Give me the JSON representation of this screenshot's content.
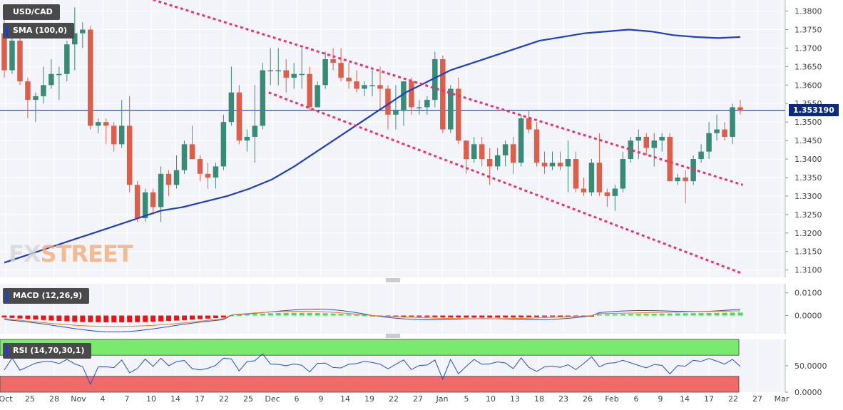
{
  "symbol": "USD/CAD",
  "watermark": {
    "fx": "FX",
    "street": "STREET"
  },
  "indicators": {
    "sma": {
      "label": "SMA (100,0)",
      "color": "#1f3fbf"
    },
    "macd": {
      "label": "MACD (12,26,9)"
    },
    "rsi": {
      "label": "RSI (14,70,30,1)"
    }
  },
  "current_price": "1.353190",
  "price_axis_ticks": [
    "1.3800",
    "1.3750",
    "1.3700",
    "1.3650",
    "1.3600",
    "1.3550",
    "1.3500",
    "1.3450",
    "1.3400",
    "1.3350",
    "1.3300",
    "1.3250",
    "1.3200",
    "1.3150",
    "1.3100"
  ],
  "macd_axis_ticks": [
    "0.0100",
    "0.0000"
  ],
  "rsi_axis_ticks": [
    "50.0000",
    "0.0000"
  ],
  "date_axis_ticks": [
    "Oct",
    "25",
    "28",
    "Nov",
    "4",
    "7",
    "10",
    "14",
    "17",
    "22",
    "25",
    "Dec",
    "6",
    "9",
    "14",
    "19",
    "22",
    "27",
    "Jan",
    "5",
    "10",
    "13",
    "18",
    "23",
    "26",
    "Feb",
    "6",
    "9",
    "14",
    "17",
    "22",
    "27",
    "Mar"
  ],
  "colors": {
    "up": "#3a8a78",
    "down": "#d9604c",
    "sma": "#1f3fbf",
    "trend": "#e8336b",
    "price_line": "#0b2a7a",
    "macd_pos": "#3fe05a",
    "macd_neg": "#ee1111",
    "macd_line": "#2050c8",
    "signal_line": "#ee7a20",
    "rsi_line": "#2050c8",
    "overbought": "#7aea6e",
    "oversold": "#f06a6a"
  },
  "chart_data": {
    "type": "candlestick",
    "title": "USD/CAD",
    "ylim": [
      1.308,
      1.383
    ],
    "x_labels": [
      "Oct",
      "25",
      "28",
      "Nov",
      "4",
      "7",
      "10",
      "14",
      "17",
      "22",
      "25",
      "Dec",
      "6",
      "9",
      "14",
      "19",
      "22",
      "27",
      "Jan",
      "5",
      "10",
      "13",
      "18",
      "23",
      "26",
      "Feb",
      "6",
      "9",
      "14",
      "17",
      "22",
      "27",
      "Mar"
    ],
    "candles": [
      [
        1.374,
        1.381,
        1.362,
        1.364
      ],
      [
        1.364,
        1.374,
        1.363,
        1.372
      ],
      [
        1.372,
        1.373,
        1.36,
        1.361
      ],
      [
        1.361,
        1.362,
        1.351,
        1.356
      ],
      [
        1.356,
        1.358,
        1.35,
        1.357
      ],
      [
        1.357,
        1.365,
        1.355,
        1.36
      ],
      [
        1.36,
        1.367,
        1.359,
        1.363
      ],
      [
        1.363,
        1.365,
        1.356,
        1.363
      ],
      [
        1.363,
        1.372,
        1.361,
        1.371
      ],
      [
        1.371,
        1.381,
        1.364,
        1.374
      ],
      [
        1.374,
        1.377,
        1.37,
        1.375
      ],
      [
        1.375,
        1.376,
        1.348,
        1.349
      ],
      [
        1.349,
        1.351,
        1.347,
        1.35
      ],
      [
        1.35,
        1.351,
        1.344,
        1.349
      ],
      [
        1.349,
        1.35,
        1.342,
        1.344
      ],
      [
        1.344,
        1.356,
        1.343,
        1.349
      ],
      [
        1.349,
        1.357,
        1.331,
        1.333
      ],
      [
        1.333,
        1.334,
        1.323,
        1.324
      ],
      [
        1.324,
        1.332,
        1.323,
        1.331
      ],
      [
        1.331,
        1.332,
        1.325,
        1.327
      ],
      [
        1.327,
        1.338,
        1.323,
        1.336
      ],
      [
        1.336,
        1.337,
        1.33,
        1.333
      ],
      [
        1.333,
        1.341,
        1.332,
        1.337
      ],
      [
        1.337,
        1.345,
        1.336,
        1.344
      ],
      [
        1.344,
        1.349,
        1.34,
        1.34
      ],
      [
        1.34,
        1.341,
        1.334,
        1.336
      ],
      [
        1.336,
        1.339,
        1.332,
        1.335
      ],
      [
        1.335,
        1.339,
        1.332,
        1.338
      ],
      [
        1.338,
        1.352,
        1.337,
        1.35
      ],
      [
        1.35,
        1.365,
        1.349,
        1.358
      ],
      [
        1.358,
        1.36,
        1.344,
        1.345
      ],
      [
        1.345,
        1.348,
        1.342,
        1.346
      ],
      [
        1.346,
        1.36,
        1.339,
        1.349
      ],
      [
        1.349,
        1.366,
        1.348,
        1.364
      ],
      [
        1.364,
        1.37,
        1.36,
        1.364
      ],
      [
        1.364,
        1.37,
        1.36,
        1.364
      ],
      [
        1.364,
        1.367,
        1.358,
        1.362
      ],
      [
        1.362,
        1.366,
        1.359,
        1.363
      ],
      [
        1.363,
        1.37,
        1.359,
        1.363
      ],
      [
        1.363,
        1.365,
        1.353,
        1.354
      ],
      [
        1.354,
        1.361,
        1.354,
        1.36
      ],
      [
        1.36,
        1.369,
        1.359,
        1.367
      ],
      [
        1.367,
        1.37,
        1.364,
        1.366
      ],
      [
        1.366,
        1.37,
        1.361,
        1.362
      ],
      [
        1.362,
        1.366,
        1.359,
        1.361
      ],
      [
        1.361,
        1.364,
        1.358,
        1.359
      ],
      [
        1.359,
        1.361,
        1.357,
        1.36
      ],
      [
        1.36,
        1.364,
        1.357,
        1.36
      ],
      [
        1.36,
        1.365,
        1.353,
        1.359
      ],
      [
        1.359,
        1.36,
        1.348,
        1.352
      ],
      [
        1.352,
        1.36,
        1.348,
        1.353
      ],
      [
        1.353,
        1.361,
        1.349,
        1.361
      ],
      [
        1.361,
        1.362,
        1.352,
        1.354
      ],
      [
        1.354,
        1.356,
        1.352,
        1.354
      ],
      [
        1.354,
        1.357,
        1.352,
        1.356
      ],
      [
        1.356,
        1.369,
        1.354,
        1.367
      ],
      [
        1.367,
        1.368,
        1.347,
        1.348
      ],
      [
        1.348,
        1.36,
        1.347,
        1.359
      ],
      [
        1.359,
        1.362,
        1.344,
        1.345
      ],
      [
        1.345,
        1.345,
        1.336,
        1.34
      ],
      [
        1.34,
        1.346,
        1.339,
        1.344
      ],
      [
        1.344,
        1.346,
        1.338,
        1.34
      ],
      [
        1.34,
        1.343,
        1.333,
        1.338
      ],
      [
        1.338,
        1.343,
        1.337,
        1.341
      ],
      [
        1.341,
        1.345,
        1.338,
        1.344
      ],
      [
        1.344,
        1.346,
        1.336,
        1.339
      ],
      [
        1.339,
        1.352,
        1.338,
        1.351
      ],
      [
        1.351,
        1.353,
        1.347,
        1.348
      ],
      [
        1.348,
        1.35,
        1.338,
        1.339
      ],
      [
        1.339,
        1.342,
        1.336,
        1.338
      ],
      [
        1.338,
        1.342,
        1.337,
        1.339
      ],
      [
        1.339,
        1.342,
        1.337,
        1.338
      ],
      [
        1.338,
        1.345,
        1.331,
        1.34
      ],
      [
        1.34,
        1.342,
        1.331,
        1.332
      ],
      [
        1.332,
        1.335,
        1.33,
        1.331
      ],
      [
        1.331,
        1.34,
        1.33,
        1.339
      ],
      [
        1.339,
        1.347,
        1.33,
        1.331
      ],
      [
        1.331,
        1.332,
        1.327,
        1.33
      ],
      [
        1.33,
        1.333,
        1.326,
        1.332
      ],
      [
        1.332,
        1.342,
        1.331,
        1.34
      ],
      [
        1.34,
        1.346,
        1.339,
        1.345
      ],
      [
        1.345,
        1.348,
        1.34,
        1.346
      ],
      [
        1.346,
        1.347,
        1.341,
        1.343
      ],
      [
        1.343,
        1.347,
        1.338,
        1.345
      ],
      [
        1.345,
        1.347,
        1.342,
        1.346
      ],
      [
        1.346,
        1.347,
        1.334,
        1.334
      ],
      [
        1.334,
        1.336,
        1.333,
        1.335
      ],
      [
        1.335,
        1.337,
        1.328,
        1.334
      ],
      [
        1.334,
        1.341,
        1.333,
        1.34
      ],
      [
        1.34,
        1.344,
        1.339,
        1.342
      ],
      [
        1.342,
        1.35,
        1.34,
        1.347
      ],
      [
        1.347,
        1.352,
        1.345,
        1.348
      ],
      [
        1.348,
        1.35,
        1.345,
        1.346
      ],
      [
        1.346,
        1.355,
        1.344,
        1.354
      ],
      [
        1.354,
        1.356,
        1.352,
        1.353
      ]
    ],
    "sma_100": [
      1.312,
      1.314,
      1.316,
      1.318,
      1.32,
      1.322,
      1.324,
      1.326,
      1.327,
      1.3285,
      1.33,
      1.332,
      1.3345,
      1.338,
      1.342,
      1.346,
      1.35,
      1.354,
      1.358,
      1.361,
      1.364,
      1.366,
      1.368,
      1.37,
      1.372,
      1.373,
      1.374,
      1.3745,
      1.375,
      1.3745,
      1.3735,
      1.373,
      1.3727,
      1.373
    ],
    "trendlines": [
      {
        "from": [
          0.18,
          1.384
        ],
        "to": [
          0.94,
          1.333
        ]
      },
      {
        "from": [
          0.34,
          1.358
        ],
        "to": [
          0.94,
          1.309
        ]
      }
    ],
    "macd": {
      "ylim": [
        -0.008,
        0.014
      ]
    },
    "rsi": {
      "ylim": [
        0,
        100
      ],
      "overbought": 70,
      "oversold": 30
    }
  }
}
